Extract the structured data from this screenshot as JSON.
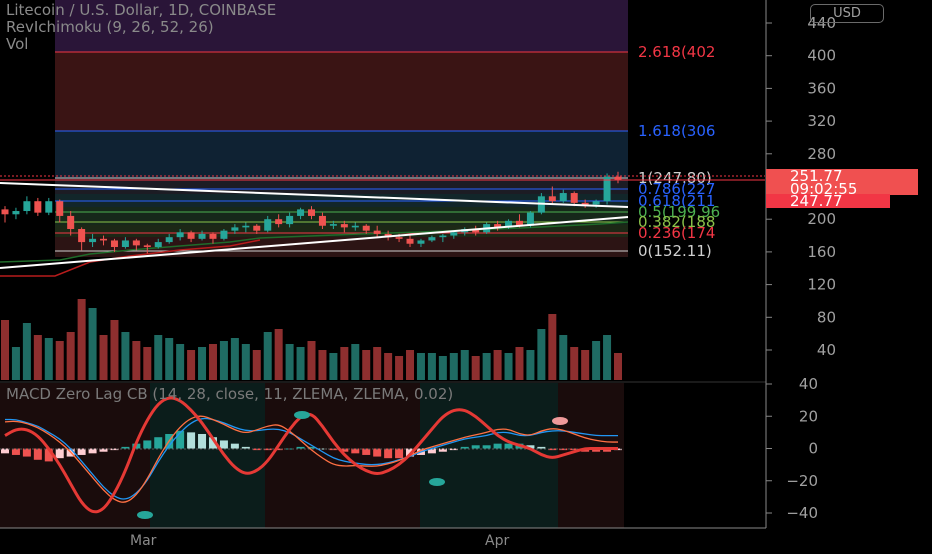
{
  "legend": {
    "title": "Litecoin / U.S. Dollar, 1D, COINBASE",
    "indicator": "RevIchimoku (9, 26, 52, 26)",
    "vol": "Vol",
    "macd": "MACD Zero Lag CB (14, 28, close, 11, ZLEMA, ZLEMA, 0.02)"
  },
  "currency": "USD",
  "price_axis": {
    "ticks": [
      "440",
      "400",
      "360",
      "320",
      "280",
      "240",
      "200",
      "160",
      "120",
      "80",
      "40"
    ]
  },
  "macd_axis": {
    "ticks": [
      "40",
      "20",
      "0",
      "−20",
      "−40"
    ]
  },
  "time_axis": {
    "labels": [
      "Mar",
      "Apr"
    ]
  },
  "fib_levels": [
    {
      "label": "2.618(402",
      "color": "#f23645"
    },
    {
      "label": "1.618(306",
      "color": "#2962ff"
    },
    {
      "label": "1(247.80)",
      "color": "#cfcfcf"
    },
    {
      "label": "0.786(227",
      "color": "#2962ff"
    },
    {
      "label": "0.618(211",
      "color": "#2962ff"
    },
    {
      "label": "0.5(199.96",
      "color": "#4caf50"
    },
    {
      "label": "0.382(188",
      "color": "#8bc34a"
    },
    {
      "label": "0.236(174",
      "color": "#f23645"
    },
    {
      "label": "0(152.11)",
      "color": "#cfcfcf"
    }
  ],
  "price_labels": {
    "last_price": "251.77",
    "countdown": "09:02:55",
    "line_price": "247.77"
  },
  "colors": {
    "up": "#26a69a",
    "down": "#ef5350",
    "macd_fast": "#e53935",
    "fib_red": "#f23645",
    "fib_blue": "#2962ff"
  },
  "candles": [
    [
      212,
      216,
      196,
      206
    ],
    [
      206,
      214,
      200,
      210
    ],
    [
      210,
      228,
      206,
      222
    ],
    [
      222,
      226,
      204,
      208
    ],
    [
      208,
      226,
      205,
      222
    ],
    [
      222,
      224,
      196,
      204
    ],
    [
      204,
      210,
      180,
      188
    ],
    [
      188,
      190,
      162,
      172
    ],
    [
      172,
      182,
      166,
      176
    ],
    [
      176,
      180,
      168,
      174
    ],
    [
      174,
      176,
      160,
      166
    ],
    [
      166,
      178,
      164,
      174
    ],
    [
      174,
      176,
      162,
      168
    ],
    [
      168,
      170,
      158,
      166
    ],
    [
      166,
      176,
      164,
      172
    ],
    [
      172,
      182,
      170,
      178
    ],
    [
      178,
      188,
      174,
      184
    ],
    [
      184,
      186,
      172,
      176
    ],
    [
      176,
      186,
      174,
      182
    ],
    [
      182,
      184,
      170,
      176
    ],
    [
      176,
      188,
      174,
      186
    ],
    [
      186,
      194,
      182,
      190
    ],
    [
      190,
      196,
      184,
      192
    ],
    [
      192,
      194,
      182,
      186
    ],
    [
      186,
      204,
      184,
      200
    ],
    [
      200,
      206,
      190,
      194
    ],
    [
      194,
      208,
      190,
      204
    ],
    [
      204,
      214,
      200,
      212
    ],
    [
      212,
      216,
      200,
      204
    ],
    [
      204,
      208,
      188,
      192
    ],
    [
      192,
      198,
      188,
      194
    ],
    [
      194,
      198,
      184,
      190
    ],
    [
      190,
      196,
      186,
      192
    ],
    [
      192,
      194,
      182,
      186
    ],
    [
      186,
      192,
      178,
      182
    ],
    [
      182,
      186,
      174,
      178
    ],
    [
      178,
      182,
      172,
      176
    ],
    [
      176,
      180,
      166,
      170
    ],
    [
      170,
      176,
      166,
      174
    ],
    [
      174,
      180,
      172,
      178
    ],
    [
      178,
      182,
      172,
      180
    ],
    [
      180,
      186,
      176,
      184
    ],
    [
      184,
      190,
      180,
      188
    ],
    [
      188,
      192,
      180,
      184
    ],
    [
      184,
      196,
      182,
      194
    ],
    [
      194,
      198,
      186,
      190
    ],
    [
      190,
      200,
      188,
      198
    ],
    [
      198,
      206,
      190,
      192
    ],
    [
      192,
      210,
      190,
      208
    ],
    [
      208,
      232,
      206,
      228
    ],
    [
      228,
      240,
      218,
      222
    ],
    [
      222,
      236,
      220,
      232
    ],
    [
      232,
      234,
      216,
      220
    ],
    [
      220,
      224,
      214,
      218
    ],
    [
      218,
      224,
      214,
      222
    ],
    [
      222,
      256,
      218,
      252
    ],
    [
      252,
      258,
      244,
      248
    ]
  ],
  "volume": [
    40,
    22,
    38,
    30,
    28,
    26,
    32,
    54,
    48,
    30,
    40,
    32,
    26,
    22,
    30,
    28,
    24,
    20,
    22,
    24,
    26,
    28,
    24,
    20,
    32,
    34,
    24,
    22,
    26,
    20,
    18,
    22,
    24,
    20,
    22,
    18,
    16,
    20,
    18,
    18,
    16,
    18,
    20,
    16,
    18,
    20,
    18,
    22,
    20,
    34,
    44,
    30,
    22,
    20,
    26,
    30,
    18
  ],
  "macd_hist": [
    -3,
    -4,
    -5,
    -7,
    -8,
    -6,
    -5,
    -4,
    -3,
    -2,
    -1,
    1,
    3,
    5,
    7,
    9,
    11,
    10,
    9,
    7,
    5,
    3,
    1,
    -1,
    -1,
    -1,
    0,
    1,
    1,
    0,
    -1,
    -2,
    -3,
    -4,
    -5,
    -6,
    -6,
    -5,
    -4,
    -3,
    -2,
    -1,
    1,
    2,
    2,
    3,
    3,
    3,
    2,
    1,
    -1,
    -1,
    -1,
    -2,
    -2,
    -2,
    -1
  ],
  "macd_fast": [
    15,
    16,
    15,
    12,
    8,
    2,
    -4,
    -12,
    -20,
    -28,
    -34,
    -36,
    -30,
    -18,
    -4,
    8,
    17,
    22,
    22,
    18,
    14,
    10,
    8,
    12,
    16,
    18,
    12,
    4,
    -4,
    -10,
    -14,
    -14,
    -12,
    -12,
    -12,
    -10,
    -8,
    -4,
    0,
    2,
    4,
    6,
    8,
    10,
    12,
    14,
    14,
    10,
    8,
    12,
    14,
    12,
    8,
    4,
    2,
    0,
    0
  ],
  "macd_signal": [
    18,
    18,
    16,
    14,
    10,
    6,
    0,
    -8,
    -16,
    -24,
    -30,
    -32,
    -28,
    -20,
    -8,
    2,
    10,
    16,
    19,
    18,
    16,
    13,
    11,
    11,
    12,
    12,
    10,
    6,
    2,
    -2,
    -6,
    -8,
    -9,
    -10,
    -10,
    -9,
    -7,
    -5,
    -2,
    0,
    2,
    4,
    6,
    7,
    8,
    10,
    10,
    8,
    8,
    10,
    11,
    11,
    10,
    9,
    8,
    8,
    8
  ],
  "macd_slow": [
    8,
    12,
    12,
    8,
    0,
    -10,
    -22,
    -34,
    -40,
    -38,
    -28,
    -14,
    4,
    18,
    28,
    32,
    30,
    24,
    16,
    6,
    -4,
    -12,
    -16,
    -14,
    -8,
    2,
    12,
    20,
    22,
    14,
    4,
    -4,
    -10,
    -14,
    -16,
    -14,
    -10,
    -4,
    4,
    12,
    20,
    24,
    24,
    20,
    14,
    8,
    4,
    2,
    0,
    -4,
    -6,
    -4,
    -2,
    0,
    0,
    0,
    0
  ]
}
